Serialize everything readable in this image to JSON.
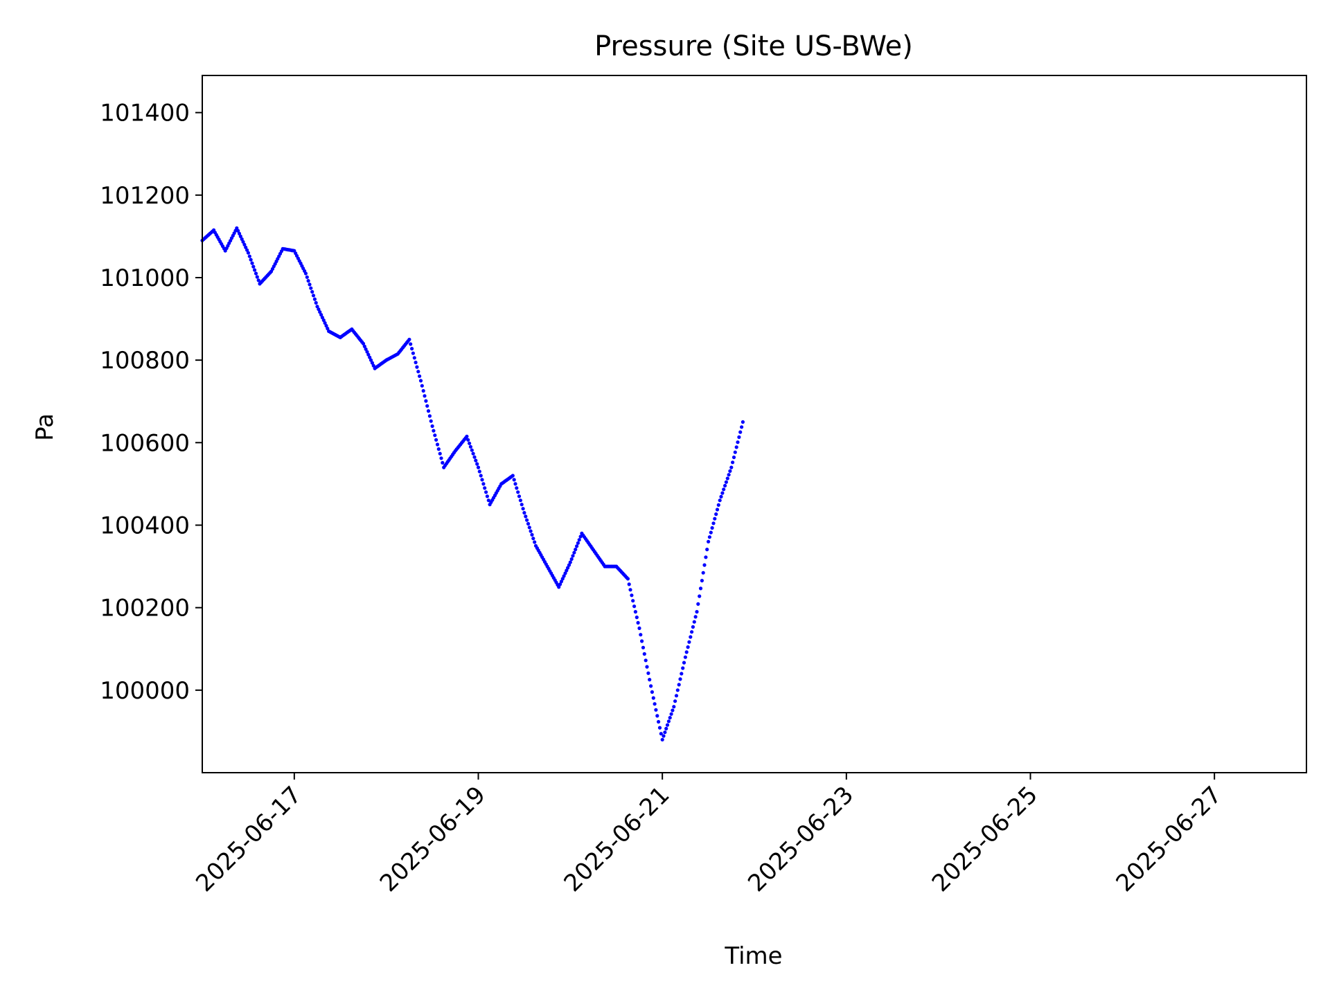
{
  "chart_data": {
    "type": "scatter",
    "title": "Pressure (Site US-BWe)",
    "xlabel": "Time",
    "ylabel": "Pa",
    "xlim": [
      "2025-06-16",
      "2025-06-28"
    ],
    "ylim": [
      99800,
      101490
    ],
    "grid": false,
    "marker_color": "#0000ff",
    "y_ticks": [
      100000,
      100200,
      100400,
      100600,
      100800,
      101000,
      101200,
      101400
    ],
    "x_ticks": [
      "2025-06-17",
      "2025-06-19",
      "2025-06-21",
      "2025-06-23",
      "2025-06-25",
      "2025-06-27"
    ],
    "series": [
      {
        "points": [
          [
            "2025-06-16T00:00",
            101090
          ],
          [
            "2025-06-16T03:00",
            101115
          ],
          [
            "2025-06-16T06:00",
            101065
          ],
          [
            "2025-06-16T09:00",
            101120
          ],
          [
            "2025-06-16T12:00",
            101060
          ],
          [
            "2025-06-16T15:00",
            100985
          ],
          [
            "2025-06-16T18:00",
            101015
          ],
          [
            "2025-06-16T21:00",
            101070
          ],
          [
            "2025-06-17T00:00",
            101065
          ],
          [
            "2025-06-17T03:00",
            101010
          ],
          [
            "2025-06-17T06:00",
            100930
          ],
          [
            "2025-06-17T09:00",
            100870
          ],
          [
            "2025-06-17T12:00",
            100855
          ],
          [
            "2025-06-17T15:00",
            100875
          ],
          [
            "2025-06-17T18:00",
            100840
          ],
          [
            "2025-06-17T21:00",
            100780
          ],
          [
            "2025-06-18T00:00",
            100800
          ],
          [
            "2025-06-18T03:00",
            100815
          ],
          [
            "2025-06-18T06:00",
            100850
          ],
          [
            "2025-06-18T09:00",
            100750
          ],
          [
            "2025-06-18T12:00",
            100640
          ],
          [
            "2025-06-18T15:00",
            100540
          ],
          [
            "2025-06-18T18:00",
            100580
          ],
          [
            "2025-06-18T21:00",
            100615
          ],
          [
            "2025-06-19T00:00",
            100540
          ],
          [
            "2025-06-19T03:00",
            100450
          ],
          [
            "2025-06-19T06:00",
            100500
          ],
          [
            "2025-06-19T09:00",
            100520
          ],
          [
            "2025-06-19T12:00",
            100430
          ],
          [
            "2025-06-19T15:00",
            100350
          ],
          [
            "2025-06-19T18:00",
            100300
          ],
          [
            "2025-06-19T21:00",
            100250
          ],
          [
            "2025-06-20T00:00",
            100310
          ],
          [
            "2025-06-20T03:00",
            100380
          ],
          [
            "2025-06-20T06:00",
            100340
          ],
          [
            "2025-06-20T09:00",
            100300
          ],
          [
            "2025-06-20T12:00",
            100300
          ],
          [
            "2025-06-20T15:00",
            100270
          ],
          [
            "2025-06-20T18:00",
            100150
          ],
          [
            "2025-06-20T21:00",
            100010
          ],
          [
            "2025-06-21T00:00",
            99880
          ],
          [
            "2025-06-21T03:00",
            99960
          ],
          [
            "2025-06-21T06:00",
            100080
          ],
          [
            "2025-06-21T09:00",
            100190
          ],
          [
            "2025-06-21T12:00",
            100360
          ],
          [
            "2025-06-21T15:00",
            100460
          ],
          [
            "2025-06-21T18:00",
            100540
          ],
          [
            "2025-06-21T21:00",
            100650
          ]
        ]
      }
    ]
  }
}
